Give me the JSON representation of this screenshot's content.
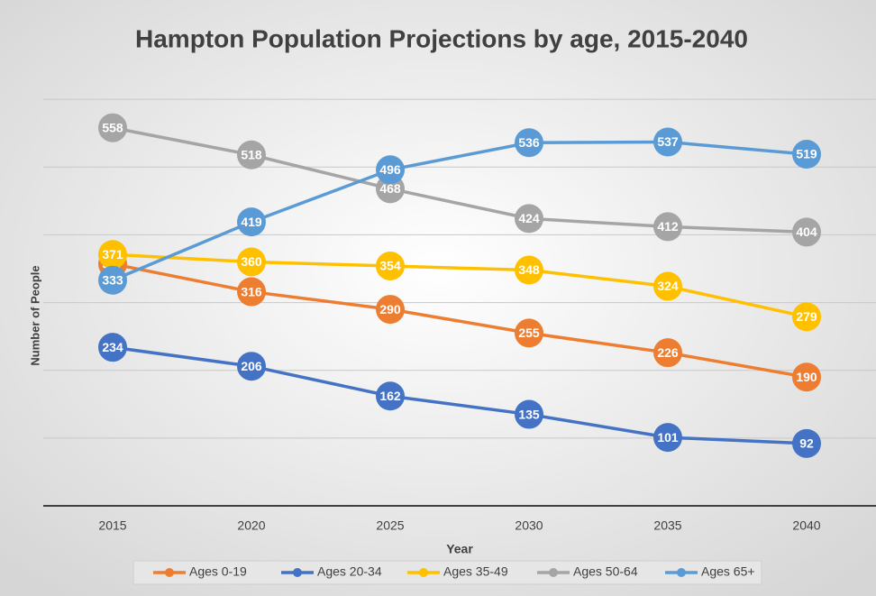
{
  "chart_data": {
    "type": "line",
    "title": "Hampton Population Projections by age, 2015-2040",
    "x_label": "Year",
    "y_label": "Number of People",
    "categories": [
      "2015",
      "2020",
      "2025",
      "2030",
      "2035",
      "2040"
    ],
    "series": [
      {
        "name": "Ages 0-19",
        "color": "#ed7d31",
        "values": [
          357,
          316,
          290,
          255,
          226,
          190
        ]
      },
      {
        "name": "Ages 20-34",
        "color": "#4472c4",
        "values": [
          234,
          206,
          162,
          135,
          101,
          92
        ]
      },
      {
        "name": "Ages 35-49",
        "color": "#ffc000",
        "values": [
          371,
          360,
          354,
          348,
          324,
          279
        ]
      },
      {
        "name": "Ages 50-64",
        "color": "#a5a5a5",
        "values": [
          558,
          518,
          468,
          424,
          412,
          404
        ]
      },
      {
        "name": "Ages 65+",
        "color": "#5b9bd5",
        "values": [
          333,
          419,
          496,
          536,
          537,
          519
        ]
      }
    ],
    "ylim": [
      0,
      700
    ],
    "yticks": [
      0,
      100,
      200,
      300,
      400,
      500,
      600
    ],
    "grid": true,
    "legend": "bottom"
  }
}
